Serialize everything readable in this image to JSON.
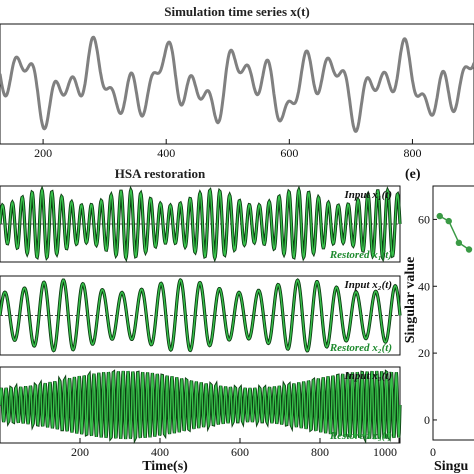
{
  "chart_data": [
    {
      "id": "top",
      "type": "line",
      "title": "Simulation time series x(t)",
      "x_ticks": [
        "200",
        "400",
        "600",
        "800"
      ],
      "x_tick_values": [
        200,
        400,
        600,
        800
      ],
      "xlim": [
        130,
        900
      ],
      "ylim": [
        -3.2,
        3.2
      ],
      "series": [
        {
          "color": "#808080",
          "f": [
            0.008,
            0.0178,
            0.0316
          ],
          "a": [
            1.0,
            0.85,
            0.75
          ],
          "p": [
            0.2,
            1.1,
            2.4
          ]
        }
      ]
    },
    {
      "id": "c",
      "type": "line",
      "title": "HSA restoration",
      "xlabel": "Time(s)",
      "x_ticks": [
        "200",
        "400",
        "600",
        "800",
        "1000"
      ],
      "x_tick_values": [
        200,
        400,
        600,
        800,
        1000
      ],
      "xlim": [
        0,
        1000
      ],
      "panels": [
        {
          "input_label": "Input x₁(t)",
          "restored_label": "Restored x₁(t)",
          "freq": 0.0405,
          "mod_freq": 0.0047,
          "mod_depth": 0.45,
          "color": "#1e8a2e"
        },
        {
          "input_label": "Input x₂(t)",
          "restored_label": "Restored x₂(t)",
          "freq": 0.0205,
          "mod_freq": 0.0033,
          "mod_depth": 0.35,
          "color": "#1e8a2e"
        },
        {
          "input_label": "Input x₃(t)",
          "restored_label": "Restored x₃(t)",
          "freq": 0.082,
          "mod_freq": 0.0016,
          "mod_depth": 0.5,
          "color": "#1e8a2e"
        }
      ]
    },
    {
      "id": "e",
      "type": "scatter",
      "panel_letter": "(e)",
      "ylabel": "Singular value",
      "xlabel_visible": "Singu",
      "y_ticks": [
        "0",
        "20",
        "40",
        "60"
      ],
      "y_tick_values": [
        0,
        20,
        40,
        60
      ],
      "x_ticks": [
        "0"
      ],
      "x_tick_values": [
        0
      ],
      "ylim": [
        -6,
        70
      ],
      "xlim": [
        0,
        4
      ],
      "points": [
        [
          0.6,
          61
        ],
        [
          1.4,
          59.5
        ],
        [
          2.3,
          53
        ],
        [
          3.2,
          51
        ]
      ],
      "color": "#3a9a45"
    }
  ]
}
